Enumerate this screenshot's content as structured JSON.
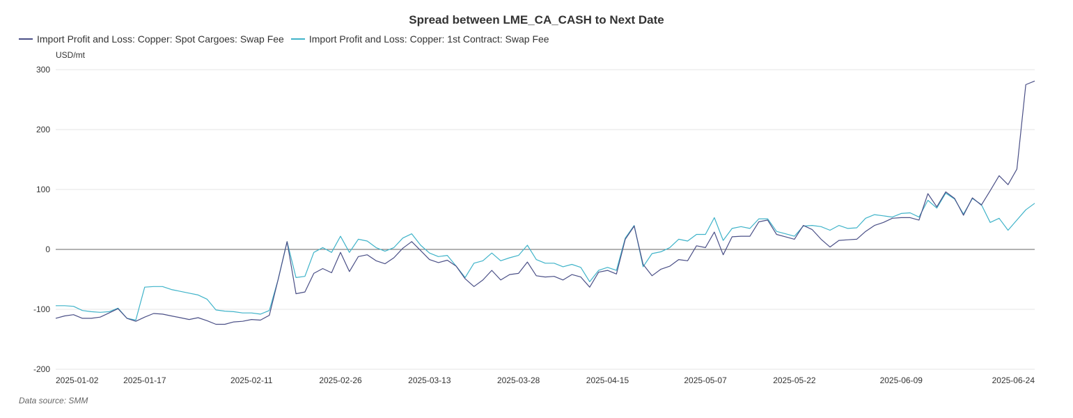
{
  "chart_data": {
    "type": "line",
    "title": "Spread between LME_CA_CASH to Next Date",
    "ylabel": "USD/mt",
    "source_text": "Data source:  SMM",
    "ylim": [
      -200,
      300
    ],
    "yticks": [
      300,
      200,
      100,
      0,
      -100,
      -200
    ],
    "xtick_labels": [
      "2025-01-02",
      "2025-01-17",
      "2025-02-11",
      "2025-02-26",
      "2025-03-13",
      "2025-03-28",
      "2025-04-15",
      "2025-05-07",
      "2025-05-22",
      "2025-06-09",
      "2025-06-24"
    ],
    "xtick_indices": [
      0,
      10,
      22,
      32,
      42,
      52,
      62,
      73,
      83,
      95,
      105
    ],
    "grid": true,
    "legend_position": "top-left",
    "series": [
      {
        "name": "Import Profit and Loss: Copper: Spot Cargoes: Swap Fee",
        "color": "#4a4f86",
        "values": [
          -115,
          -111,
          -109,
          -115,
          -115,
          -113,
          -106,
          -99,
          -115,
          -120,
          -113,
          -107,
          -108,
          -111,
          -114,
          -117,
          -114,
          -119,
          -125,
          -125,
          -121,
          -120,
          -117,
          -118,
          -110,
          -50,
          13,
          -74,
          -71,
          -40,
          -32,
          -39,
          -5,
          -37,
          -12,
          -9,
          -19,
          -24,
          -14,
          2,
          13,
          -2,
          -17,
          -22,
          -18,
          -28,
          -49,
          -62,
          -51,
          -35,
          -51,
          -42,
          -40,
          -21,
          -44,
          -46,
          -45,
          -51,
          -42,
          -46,
          -63,
          -38,
          -35,
          -41,
          17,
          39,
          -25,
          -44,
          -33,
          -28,
          -17,
          -19,
          6,
          3,
          29,
          -9,
          21,
          22,
          22,
          46,
          49,
          25,
          21,
          17,
          40,
          33,
          17,
          4,
          15,
          16,
          17,
          30,
          40,
          45,
          52,
          53,
          53,
          49,
          93,
          71,
          96,
          85,
          57,
          86,
          74,
          98,
          123,
          108,
          134,
          275,
          281
        ],
        "values_note": "one value per trading day"
      },
      {
        "name": "Import Profit and Loss: Copper: 1st Contract: Swap Fee",
        "color": "#3fb3c9",
        "values": [
          -94,
          -94,
          -95,
          -102,
          -104,
          -105,
          -104,
          -98,
          -115,
          -118,
          -63,
          -62,
          -62,
          -67,
          -70,
          -73,
          -76,
          -83,
          -101,
          -103,
          -104,
          -106,
          -106,
          -108,
          -102,
          -50,
          13,
          -47,
          -45,
          -5,
          3,
          -5,
          22,
          -5,
          17,
          14,
          3,
          -3,
          3,
          19,
          26,
          7,
          -6,
          -12,
          -10,
          -28,
          -47,
          -23,
          -19,
          -6,
          -19,
          -14,
          -10,
          7,
          -17,
          -23,
          -23,
          -29,
          -25,
          -30,
          -54,
          -35,
          -30,
          -35,
          19,
          40,
          -29,
          -7,
          -4,
          3,
          17,
          14,
          25,
          25,
          53,
          15,
          35,
          38,
          35,
          51,
          51,
          30,
          26,
          22,
          39,
          40,
          38,
          32,
          40,
          35,
          36,
          52,
          58,
          56,
          54,
          60,
          61,
          54,
          82,
          69,
          94,
          84,
          59,
          85,
          75,
          45,
          52,
          32,
          49,
          66,
          77
        ]
      }
    ]
  }
}
